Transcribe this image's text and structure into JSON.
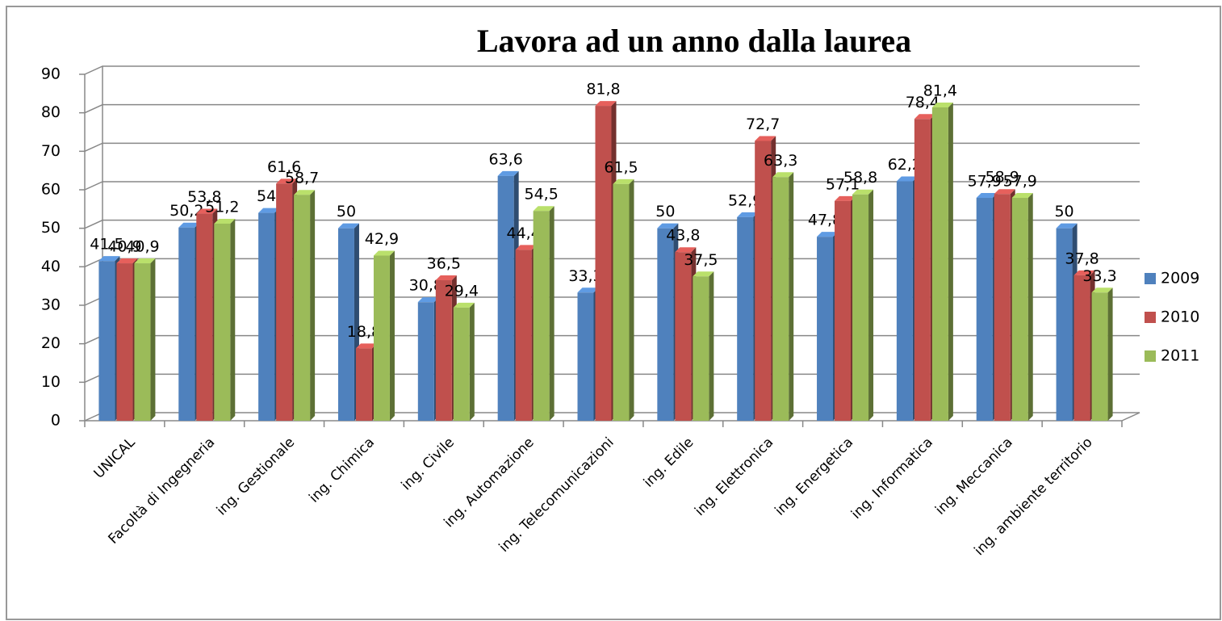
{
  "chart_data": {
    "type": "bar3d",
    "title": "Lavora ad un anno dalla laurea",
    "categories": [
      "UNICAL",
      "Facoltà di Ingegneria",
      "ing. Gestionale",
      "ing. Chimica",
      "ing. Civile",
      "ing. Automazione",
      "ing. Telecomunicazioni",
      "ing. Edile",
      "ing. Elettronica",
      "ing. Energetica",
      "ing. Informatica",
      "ing. Meccanica",
      "ing. ambiente territorio"
    ],
    "series": [
      {
        "name": "2009",
        "color": "#4f81bd",
        "values": [
          41.5,
          50.2,
          54,
          50,
          30.8,
          63.6,
          33.3,
          50,
          52.9,
          47.8,
          62.2,
          57.9,
          50
        ],
        "value_labels": [
          "41,5",
          "50,2",
          "54",
          "50",
          "30,8",
          "63,6",
          "33,3",
          "50",
          "52,9",
          "47,8",
          "62,2",
          "57,9",
          "50"
        ]
      },
      {
        "name": "2010",
        "color": "#c0504d",
        "values": [
          40.9,
          53.8,
          61.6,
          18.8,
          36.5,
          44.4,
          81.8,
          43.8,
          72.7,
          57.1,
          78.4,
          58.9,
          37.8
        ],
        "value_labels": [
          "40,9",
          "53,8",
          "61,6",
          "18,8",
          "36,5",
          "44,4",
          "81,8",
          "43,8",
          "72,7",
          "57,1",
          "78,4",
          "58,9",
          "37,8"
        ]
      },
      {
        "name": "2011",
        "color": "#9bbb59",
        "values": [
          40.9,
          51.2,
          58.7,
          42.9,
          29.4,
          54.5,
          61.5,
          37.5,
          63.3,
          58.8,
          81.4,
          57.9,
          33.3
        ],
        "value_labels": [
          "40,9",
          "51,2",
          "58,7",
          "42,9",
          "29,4",
          "54,5",
          "61,5",
          "37,5",
          "63,3",
          "58,8",
          "81,4",
          "57,9",
          "33,3"
        ]
      }
    ],
    "ylim": [
      0,
      90
    ],
    "yticks": [
      0,
      10,
      20,
      30,
      40,
      50,
      60,
      70,
      80,
      90
    ],
    "grid": true,
    "legend": "right"
  }
}
